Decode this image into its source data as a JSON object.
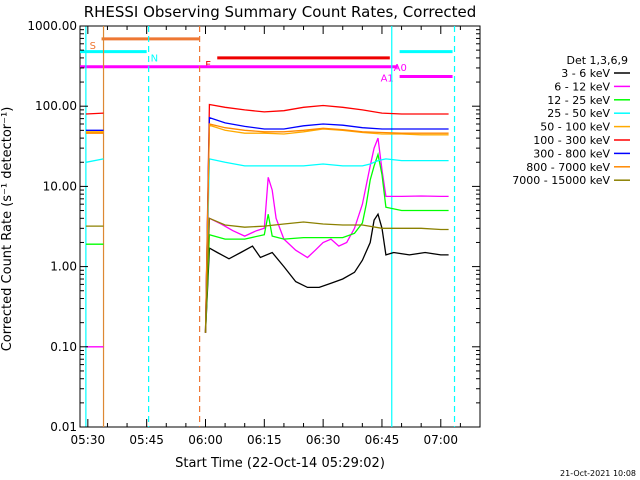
{
  "chart_data": {
    "type": "line",
    "title": "RHESSI Observing Summary Count Rates, Corrected",
    "xlabel": "Start Time (22-Oct-14 05:29:02)",
    "ylabel": "Corrected Count Rate (s⁻¹ detector⁻¹)",
    "yscale": "log",
    "ylim": [
      0.01,
      1000
    ],
    "xlim_minutes": [
      -2,
      100
    ],
    "x_tick_labels": [
      "05:30",
      "05:45",
      "06:00",
      "06:15",
      "06:30",
      "06:45",
      "07:00"
    ],
    "x_tick_minutes": [
      0,
      15,
      30,
      45,
      60,
      75,
      90
    ],
    "y_tick_labels": [
      "0.01",
      "0.10",
      "1.00",
      "10.00",
      "100.00",
      "1000.00"
    ],
    "y_tick_values": [
      0.01,
      0.1,
      1,
      10,
      100,
      1000
    ],
    "legend_title": "Det 1,3,6,9",
    "legend_position": "right",
    "footer": "21-Oct-2021 10:08",
    "series": [
      {
        "name": "3 - 6 keV",
        "color": "#000000",
        "points": [
          [
            30,
            0.15
          ],
          [
            31,
            1.7
          ],
          [
            33,
            1.5
          ],
          [
            36,
            1.25
          ],
          [
            39,
            1.5
          ],
          [
            42,
            1.8
          ],
          [
            44,
            1.3
          ],
          [
            47,
            1.5
          ],
          [
            50,
            1.0
          ],
          [
            53,
            0.65
          ],
          [
            56,
            0.55
          ],
          [
            59,
            0.55
          ],
          [
            62,
            0.62
          ],
          [
            65,
            0.7
          ],
          [
            68,
            0.85
          ],
          [
            70,
            1.2
          ],
          [
            72,
            2.0
          ],
          [
            73,
            3.8
          ],
          [
            74,
            4.5
          ],
          [
            75,
            3.0
          ],
          [
            76,
            1.4
          ],
          [
            78,
            1.5
          ],
          [
            82,
            1.4
          ],
          [
            86,
            1.5
          ],
          [
            90,
            1.4
          ],
          [
            92,
            1.4
          ]
        ]
      },
      {
        "name": "6 - 12 keV",
        "color": "#ff00ff",
        "points": [
          [
            -0.5,
            0.1
          ],
          [
            4,
            0.1
          ],
          [
            null,
            null
          ],
          [
            30,
            0.15
          ],
          [
            31,
            4.0
          ],
          [
            34,
            3.4
          ],
          [
            37,
            2.8
          ],
          [
            40,
            2.4
          ],
          [
            43,
            2.8
          ],
          [
            45,
            3.0
          ],
          [
            46,
            13
          ],
          [
            47,
            9
          ],
          [
            48,
            4.0
          ],
          [
            50,
            2.2
          ],
          [
            53,
            1.6
          ],
          [
            56,
            1.3
          ],
          [
            58,
            1.6
          ],
          [
            60,
            2.0
          ],
          [
            62,
            2.2
          ],
          [
            64,
            1.8
          ],
          [
            66,
            2.0
          ],
          [
            68,
            3.0
          ],
          [
            70,
            6
          ],
          [
            72,
            18
          ],
          [
            73,
            30
          ],
          [
            74,
            40
          ],
          [
            75,
            16
          ],
          [
            76,
            7.5
          ],
          [
            80,
            7.5
          ],
          [
            85,
            7.6
          ],
          [
            90,
            7.5
          ],
          [
            92,
            7.5
          ]
        ]
      },
      {
        "name": "12 - 25 keV",
        "color": "#00ff00",
        "points": [
          [
            -0.5,
            1.9
          ],
          [
            4,
            1.9
          ],
          [
            null,
            null
          ],
          [
            30,
            0.15
          ],
          [
            31,
            2.5
          ],
          [
            35,
            2.2
          ],
          [
            40,
            2.2
          ],
          [
            45,
            2.5
          ],
          [
            46,
            4.5
          ],
          [
            47,
            2.4
          ],
          [
            50,
            2.2
          ],
          [
            55,
            2.3
          ],
          [
            60,
            2.3
          ],
          [
            65,
            2.3
          ],
          [
            68,
            2.6
          ],
          [
            70,
            3.5
          ],
          [
            71,
            6
          ],
          [
            72,
            12
          ],
          [
            73,
            18
          ],
          [
            74,
            25
          ],
          [
            75,
            14
          ],
          [
            76,
            5.5
          ],
          [
            80,
            5.0
          ],
          [
            85,
            5.0
          ],
          [
            90,
            5.0
          ],
          [
            92,
            5.0
          ]
        ]
      },
      {
        "name": "25 - 50 keV",
        "color": "#00ffff",
        "points": [
          [
            -0.5,
            20
          ],
          [
            4,
            22
          ],
          [
            null,
            null
          ],
          [
            30,
            0.15
          ],
          [
            31,
            22
          ],
          [
            35,
            20
          ],
          [
            40,
            18
          ],
          [
            45,
            18
          ],
          [
            50,
            18
          ],
          [
            55,
            18
          ],
          [
            60,
            19
          ],
          [
            65,
            18
          ],
          [
            70,
            18
          ],
          [
            72,
            19
          ],
          [
            74,
            21
          ],
          [
            76,
            22
          ],
          [
            80,
            21
          ],
          [
            85,
            21
          ],
          [
            90,
            21
          ],
          [
            92,
            21
          ]
        ]
      },
      {
        "name": "50 - 100 keV",
        "color": "#ffaa00",
        "points": [
          [
            -0.5,
            48
          ],
          [
            4,
            48
          ],
          [
            null,
            null
          ],
          [
            30,
            0.15
          ],
          [
            31,
            58
          ],
          [
            35,
            50
          ],
          [
            40,
            46
          ],
          [
            45,
            46
          ],
          [
            50,
            45
          ],
          [
            55,
            48
          ],
          [
            60,
            52
          ],
          [
            65,
            50
          ],
          [
            70,
            47
          ],
          [
            75,
            45
          ],
          [
            80,
            45
          ],
          [
            85,
            44
          ],
          [
            90,
            44
          ],
          [
            92,
            44
          ]
        ]
      },
      {
        "name": "100 - 300 keV",
        "color": "#ff0000",
        "points": [
          [
            -0.5,
            80
          ],
          [
            4,
            82
          ],
          [
            null,
            null
          ],
          [
            30,
            0.15
          ],
          [
            31,
            105
          ],
          [
            35,
            97
          ],
          [
            40,
            90
          ],
          [
            45,
            85
          ],
          [
            50,
            88
          ],
          [
            55,
            97
          ],
          [
            60,
            102
          ],
          [
            65,
            97
          ],
          [
            70,
            90
          ],
          [
            75,
            82
          ],
          [
            80,
            80
          ],
          [
            85,
            80
          ],
          [
            90,
            80
          ],
          [
            92,
            80
          ]
        ]
      },
      {
        "name": "300 - 800 keV",
        "color": "#0000ff",
        "points": [
          [
            -0.5,
            50
          ],
          [
            4,
            50
          ],
          [
            null,
            null
          ],
          [
            30,
            0.15
          ],
          [
            31,
            72
          ],
          [
            35,
            62
          ],
          [
            40,
            56
          ],
          [
            45,
            52
          ],
          [
            50,
            52
          ],
          [
            55,
            57
          ],
          [
            60,
            60
          ],
          [
            65,
            58
          ],
          [
            70,
            54
          ],
          [
            75,
            52
          ],
          [
            80,
            52
          ],
          [
            85,
            52
          ],
          [
            90,
            52
          ],
          [
            92,
            52
          ]
        ]
      },
      {
        "name": "800 - 7000 keV",
        "color": "#ff8800",
        "points": [
          [
            -0.5,
            46
          ],
          [
            4,
            46
          ],
          [
            null,
            null
          ],
          [
            30,
            0.15
          ],
          [
            31,
            60
          ],
          [
            35,
            54
          ],
          [
            40,
            50
          ],
          [
            45,
            48
          ],
          [
            50,
            48
          ],
          [
            55,
            50
          ],
          [
            60,
            53
          ],
          [
            65,
            51
          ],
          [
            70,
            48
          ],
          [
            75,
            47
          ],
          [
            80,
            46
          ],
          [
            85,
            46
          ],
          [
            90,
            46
          ],
          [
            92,
            46
          ]
        ]
      },
      {
        "name": "7000 - 15000 keV",
        "color": "#8b8000",
        "points": [
          [
            -0.5,
            3.2
          ],
          [
            4,
            3.2
          ],
          [
            null,
            null
          ],
          [
            30,
            0.15
          ],
          [
            31,
            4.0
          ],
          [
            35,
            3.3
          ],
          [
            40,
            3.1
          ],
          [
            45,
            3.2
          ],
          [
            50,
            3.4
          ],
          [
            55,
            3.6
          ],
          [
            60,
            3.4
          ],
          [
            65,
            3.3
          ],
          [
            70,
            3.3
          ],
          [
            75,
            3.0
          ],
          [
            80,
            3.0
          ],
          [
            85,
            3.0
          ],
          [
            90,
            2.9
          ],
          [
            92,
            2.9
          ]
        ]
      }
    ],
    "flags": [
      {
        "label": "S",
        "color": "#ee7733",
        "start_min": 3.5,
        "end_min": 28.5,
        "value": 690
      },
      {
        "label": "N",
        "color": "#00ffff",
        "start_min": -2,
        "end_min": 15,
        "value": 480
      },
      {
        "label": "F",
        "color": "#ee0000",
        "start_min": 33,
        "end_min": 77,
        "value": 400
      },
      {
        "label": "A0",
        "color": "#ff00ff",
        "start_min": -2,
        "end_min": 79,
        "value": 310
      },
      {
        "label": "A1",
        "color": "#ff00ff",
        "start_min": 79.5,
        "end_min": 93,
        "value": 235
      },
      {
        "label": "",
        "color": "#00ffff",
        "start_min": 79.5,
        "end_min": 93,
        "value": 480
      }
    ],
    "vertical_markers": [
      {
        "minute": -0.5,
        "color": "#00ffff",
        "style": "solid"
      },
      {
        "minute": 4,
        "color": "#dd8833",
        "style": "solid"
      },
      {
        "minute": 15.5,
        "color": "#00ffff",
        "style": "dashed"
      },
      {
        "minute": 28.5,
        "color": "#ee7733",
        "style": "dashed"
      },
      {
        "minute": 77.5,
        "color": "#00ffff",
        "style": "solid"
      },
      {
        "minute": 93.5,
        "color": "#00ffff",
        "style": "dashed"
      }
    ]
  }
}
